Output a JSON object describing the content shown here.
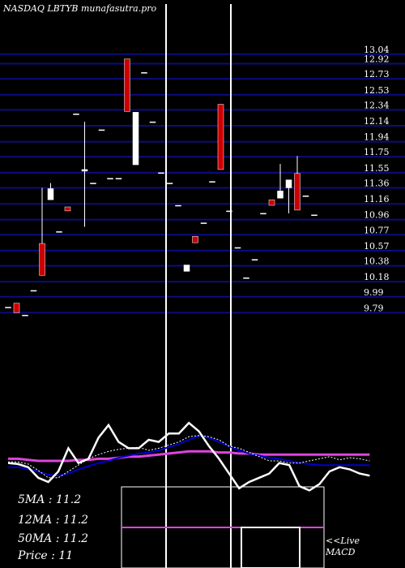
{
  "header": {
    "title": "NASDAQ LBTYB munafasutra.pro"
  },
  "chart_data": {
    "type": "candlestick",
    "ylim": [
      9.6,
      13.15
    ],
    "y_ticks": [
      13.04,
      12.92,
      12.73,
      12.53,
      12.34,
      12.14,
      11.94,
      11.75,
      11.55,
      11.36,
      11.16,
      10.96,
      10.77,
      10.57,
      10.38,
      10.18,
      9.99,
      9.79
    ],
    "colors": {
      "grid": "#0c0c80",
      "up_candle": "#ffffff",
      "down_candle": "#cc0000",
      "ma_fast": "#ffffff",
      "ma_slow": "#0000cc",
      "ma_long": "#dd44dd"
    },
    "candles": [
      {
        "o": 9.86,
        "h": 9.86,
        "l": 9.86,
        "c": 9.86
      },
      {
        "o": 9.91,
        "h": 9.91,
        "l": 9.79,
        "c": 9.79
      },
      {
        "o": 9.76,
        "h": 9.76,
        "l": 9.76,
        "c": 9.76
      },
      {
        "o": 10.07,
        "h": 10.07,
        "l": 10.07,
        "c": 10.07
      },
      {
        "o": 10.66,
        "h": 11.36,
        "l": 10.26,
        "c": 10.26
      },
      {
        "o": 11.21,
        "h": 11.42,
        "l": 11.21,
        "c": 11.35
      },
      {
        "o": 10.81,
        "h": 10.81,
        "l": 10.81,
        "c": 10.81
      },
      {
        "o": 11.12,
        "h": 11.12,
        "l": 11.07,
        "c": 11.07
      },
      {
        "o": 12.29,
        "h": 12.29,
        "l": 12.29,
        "c": 12.29
      },
      {
        "o": 11.57,
        "h": 12.19,
        "l": 10.87,
        "c": 11.59
      },
      {
        "o": 11.42,
        "h": 11.42,
        "l": 11.42,
        "c": 11.42
      },
      {
        "o": 12.09,
        "h": 12.09,
        "l": 12.09,
        "c": 12.09
      },
      {
        "o": 11.48,
        "h": 11.48,
        "l": 11.48,
        "c": 11.48
      },
      {
        "o": 11.48,
        "h": 11.48,
        "l": 11.48,
        "c": 11.48
      },
      {
        "o": 12.98,
        "h": 12.98,
        "l": 12.32,
        "c": 12.32
      },
      {
        "o": 11.65,
        "h": 12.31,
        "l": 11.65,
        "c": 12.31
      },
      {
        "o": 12.81,
        "h": 12.81,
        "l": 12.81,
        "c": 12.81
      },
      {
        "o": 12.19,
        "h": 12.19,
        "l": 12.19,
        "c": 12.19
      },
      {
        "o": 11.55,
        "h": 11.55,
        "l": 11.55,
        "c": 11.55
      },
      {
        "o": 11.42,
        "h": 11.42,
        "l": 11.42,
        "c": 11.42
      },
      {
        "o": 11.14,
        "h": 11.14,
        "l": 11.14,
        "c": 11.14
      },
      {
        "o": 10.31,
        "h": 10.39,
        "l": 10.31,
        "c": 10.39
      },
      {
        "o": 10.75,
        "h": 10.75,
        "l": 10.67,
        "c": 10.67
      },
      {
        "o": 10.92,
        "h": 10.92,
        "l": 10.92,
        "c": 10.92
      },
      {
        "o": 11.44,
        "h": 11.44,
        "l": 11.44,
        "c": 11.44
      },
      {
        "o": 12.41,
        "h": 12.41,
        "l": 11.59,
        "c": 11.59
      },
      {
        "o": 11.07,
        "h": 11.07,
        "l": 11.07,
        "c": 11.07
      },
      {
        "o": 10.61,
        "h": 10.61,
        "l": 10.61,
        "c": 10.61
      },
      {
        "o": 10.23,
        "h": 10.23,
        "l": 10.23,
        "c": 10.23
      },
      {
        "o": 10.46,
        "h": 10.46,
        "l": 10.46,
        "c": 10.46
      },
      {
        "o": 11.04,
        "h": 11.04,
        "l": 11.04,
        "c": 11.04
      },
      {
        "o": 11.21,
        "h": 11.21,
        "l": 11.14,
        "c": 11.14
      },
      {
        "o": 11.23,
        "h": 11.66,
        "l": 11.23,
        "c": 11.32
      },
      {
        "o": 11.36,
        "h": 11.46,
        "l": 11.04,
        "c": 11.46
      },
      {
        "o": 11.54,
        "h": 11.76,
        "l": 11.08,
        "c": 11.08
      },
      {
        "o": 11.26,
        "h": 11.26,
        "l": 11.26,
        "c": 11.26
      },
      {
        "o": 11.02,
        "h": 11.02,
        "l": 11.02,
        "c": 11.02
      }
    ],
    "ma_fast": [
      39,
      39,
      37,
      31,
      24,
      24,
      30,
      36,
      42,
      46,
      49,
      51,
      52,
      53,
      50,
      52,
      55,
      58,
      63,
      64,
      63,
      60,
      54,
      52,
      48,
      44,
      40,
      40,
      38,
      38,
      40,
      42,
      44,
      41,
      43,
      42,
      40
    ],
    "ma_slow": [
      34,
      34,
      32,
      30,
      27,
      26,
      28,
      32,
      35,
      38,
      40,
      43,
      45,
      47,
      48,
      50,
      53,
      56,
      60,
      64,
      62,
      58,
      54,
      50,
      47,
      45,
      43,
      42,
      40,
      38,
      37,
      36,
      36,
      36,
      36,
      36,
      36
    ],
    "ma_long": [
      42,
      42,
      41,
      40,
      40,
      40,
      40,
      41,
      41,
      42,
      42,
      43,
      44,
      44,
      45,
      46,
      47,
      48,
      49,
      49,
      49,
      48,
      48,
      47,
      47,
      46,
      46,
      46,
      46,
      46,
      46,
      46,
      46,
      46,
      46,
      46,
      46
    ],
    "price_line": [
      38,
      37,
      34,
      24,
      20,
      30,
      52,
      38,
      42,
      62,
      74,
      58,
      52,
      52,
      60,
      58,
      66,
      66,
      76,
      68,
      54,
      42,
      28,
      14,
      20,
      24,
      28,
      38,
      36,
      16,
      12,
      18,
      30,
      34,
      32,
      28,
      26
    ]
  },
  "indicators": {
    "ma5": "5MA : 11.2",
    "ma12": "12MA : 11.2",
    "ma50": "50MA : 11.2",
    "price": "Price   : 11",
    "macd_label": "<<Live",
    "macd_sub": "MACD"
  }
}
